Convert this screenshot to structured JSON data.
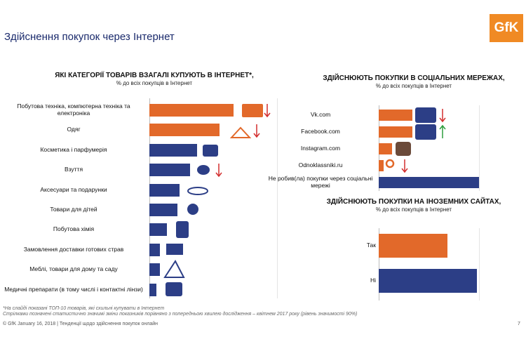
{
  "header": {
    "title": "Здійснення покупок через Інтернет",
    "logo": "GfK"
  },
  "chart_data": [
    {
      "type": "bar",
      "orientation": "horizontal",
      "title": "ЯКІ КАТЕГОРІЇ ТОВАРІВ ВЗАГАЛІ КУПУЮТЬ В ІНТЕРНЕТ*,",
      "subtitle": "% до всіх покупців в Інтернет",
      "categories": [
        "Побутова техніка, компютерна техніка та електроніка",
        "Одяг",
        "Косметика і парфумерія",
        "Взуття",
        "Аксесуари та подарунки",
        "Товари для дітей",
        "Побутова хімія",
        "Замовлення доставки готових страв",
        "Меблі, товари для дому та саду",
        "Медичні препарати (в тому числі і контактні лінзи)"
      ],
      "values": [
        48,
        40,
        27,
        23,
        17,
        16,
        10,
        6,
        6,
        4
      ],
      "colors": [
        "#e2692a",
        "#e2692a",
        "#2c3e86",
        "#2c3e86",
        "#2c3e86",
        "#2c3e86",
        "#2c3e86",
        "#2c3e86",
        "#2c3e86",
        "#2c3e86"
      ],
      "xlim": [
        0,
        100
      ]
    },
    {
      "type": "bar",
      "orientation": "horizontal",
      "title": "ЗДІЙСНЮЮТЬ ПОКУПКИ В СОЦІАЛЬНИХ МЕРЕЖАХ,",
      "subtitle": "% до всіх покупців в Інтернет",
      "categories": [
        "Vk.com",
        "Facebook.com",
        "Instagram.com",
        "Odnoklassniki.ru",
        "Не робив(ла) покупки через соціальні мережі"
      ],
      "values": [
        20,
        20,
        8,
        3,
        60
      ],
      "colors": [
        "#e2692a",
        "#e2692a",
        "#e2692a",
        "#e2692a",
        "#2c3e86"
      ],
      "xlim": [
        0,
        100
      ]
    },
    {
      "type": "bar",
      "orientation": "horizontal",
      "title": "ЗДІЙСНЮЮТЬ ПОКУПКИ НА ІНОЗЕМНИХ САЙТАХ,",
      "subtitle": "% до всіх покупців в Інтернет",
      "categories": [
        "Так",
        "Ні"
      ],
      "values": [
        41,
        59
      ],
      "colors": [
        "#e2692a",
        "#2c3e86"
      ],
      "xlim": [
        0,
        100
      ]
    }
  ],
  "footnotes": [
    "*На слайді показані ТОП-10 товарів, які схильні купувати в Інтернет",
    "Стрілками позначені статистично значимі зміни показників порівняно з попередньою хвилею дослідження – квітнем 2017 року (рівень значимості 90%)"
  ],
  "footer": {
    "text": "© GfK January 16, 2018 | Тенденції щодо здійснення покупок онлайн",
    "page": 7
  }
}
